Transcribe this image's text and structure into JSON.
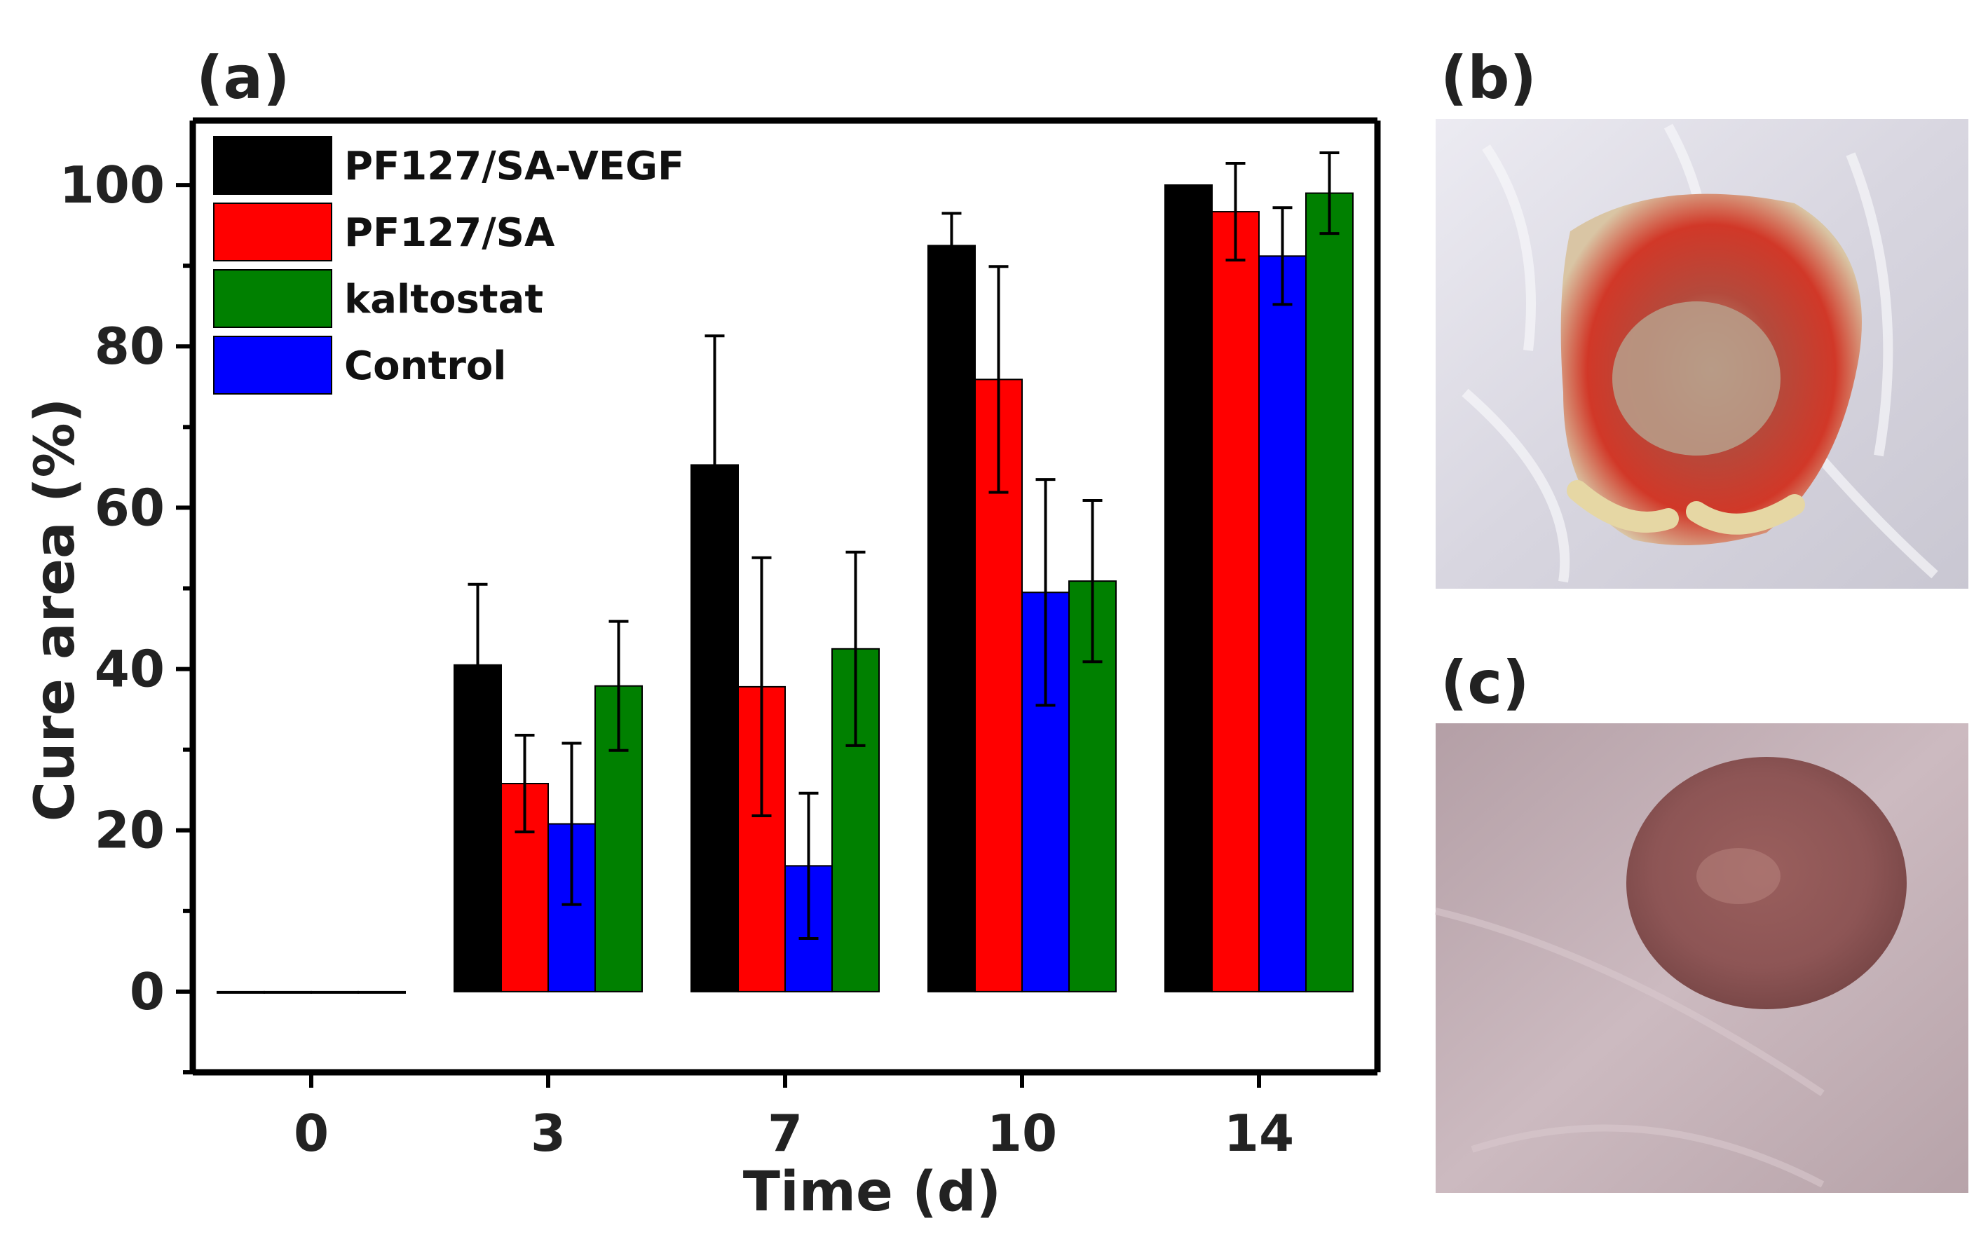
{
  "panels": {
    "a": "(a)",
    "b": "(b)",
    "c": "(c)"
  },
  "chart_data": {
    "type": "bar",
    "title": "",
    "xlabel": "Time (d)",
    "ylabel": "Cure area (%)",
    "categories": [
      "0",
      "3",
      "7",
      "10",
      "14"
    ],
    "ylim": [
      -10,
      108
    ],
    "yticks": [
      0,
      20,
      40,
      60,
      80,
      100
    ],
    "legend_position": "top-left",
    "series": [
      {
        "name": "PF127/SA-VEGF",
        "color": "#000000",
        "values": [
          0,
          40.5,
          65.3,
          92.5,
          100
        ],
        "errors": [
          0,
          10,
          16,
          4,
          0
        ]
      },
      {
        "name": "PF127/SA",
        "color": "#ff0000",
        "values": [
          0,
          25.8,
          37.8,
          75.9,
          96.7
        ],
        "errors": [
          0,
          6,
          16,
          14,
          6
        ]
      },
      {
        "name": "Control",
        "color": "#0000ff",
        "values": [
          0,
          20.8,
          15.6,
          49.5,
          91.2
        ],
        "errors": [
          0,
          10,
          9,
          14,
          6
        ]
      },
      {
        "name": "kaltostat",
        "color": "#008000",
        "values": [
          0,
          37.9,
          42.5,
          50.9,
          99.0
        ],
        "errors": [
          0,
          8,
          12,
          10,
          5
        ]
      }
    ],
    "legend_order": [
      "PF127/SA-VEGF",
      "PF127/SA",
      "kaltostat",
      "Control"
    ]
  },
  "photos": {
    "b": {
      "subject": "wound-b"
    },
    "c": {
      "subject": "wound-c"
    }
  }
}
